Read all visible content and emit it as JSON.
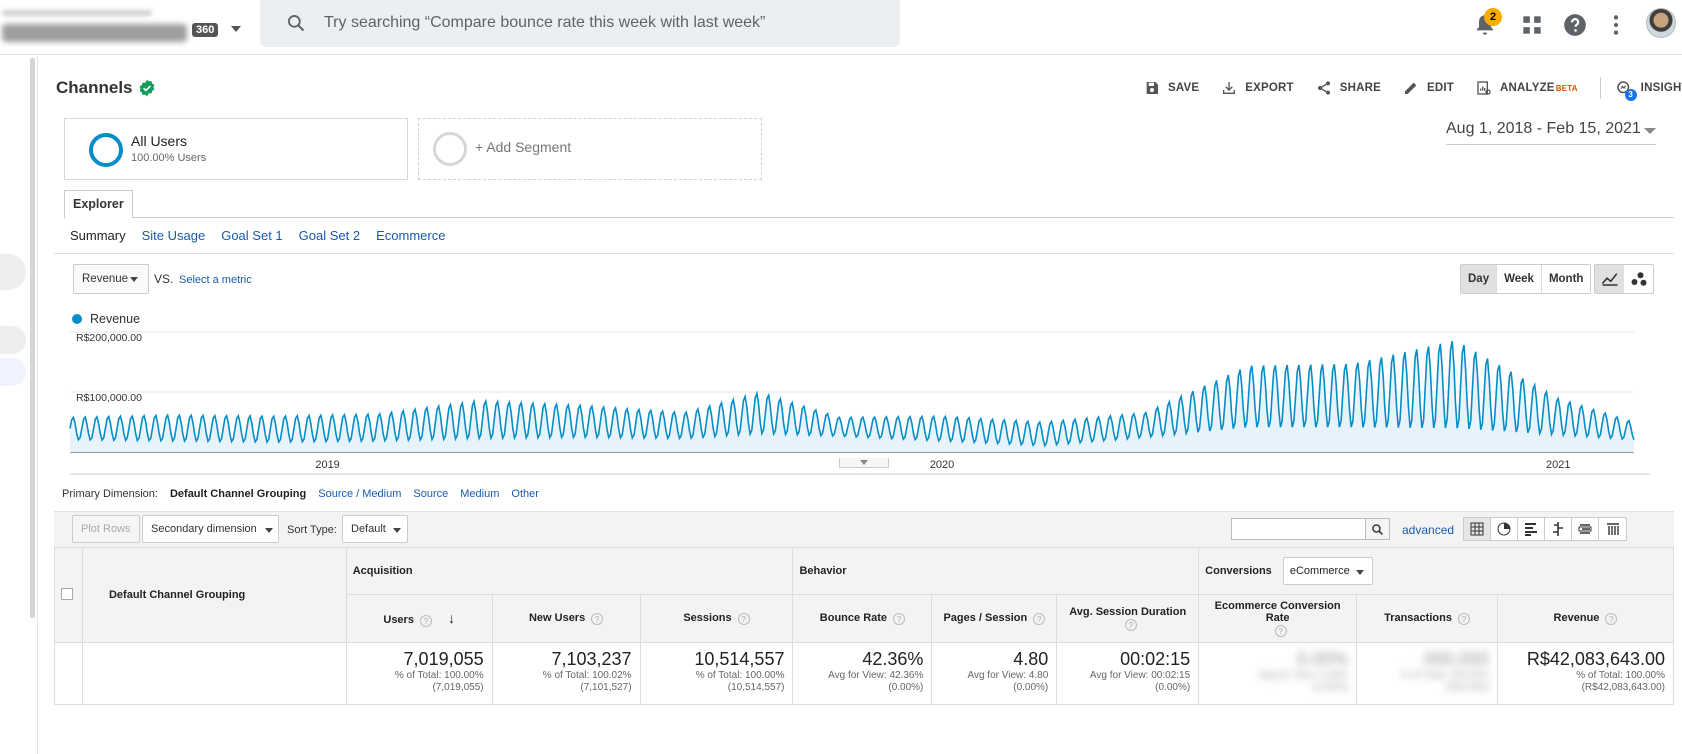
{
  "topbar": {
    "account_badge": "360",
    "search_placeholder": "Try searching “Compare bounce rate this week with last week”",
    "notification_count": "2"
  },
  "report": {
    "title": "Channels",
    "actions": {
      "save": "SAVE",
      "export": "EXPORT",
      "share": "SHARE",
      "edit": "EDIT",
      "analyze": "ANALYZE",
      "analyze_tag": "BETA",
      "insights": "INSIGHTS",
      "insights_count": "3"
    }
  },
  "segments": {
    "primary": {
      "name": "All Users",
      "sub": "100.00% Users"
    },
    "add": "+ Add Segment"
  },
  "date_range": "Aug 1, 2018 - Feb 15, 2021",
  "tabs": {
    "explorer": "Explorer"
  },
  "subtabs": [
    "Summary",
    "Site Usage",
    "Goal Set 1",
    "Goal Set 2",
    "Ecommerce"
  ],
  "chart_controls": {
    "metric": "Revenue",
    "vs": "VS.",
    "select_metric": "Select a metric",
    "granularity": [
      "Day",
      "Week",
      "Month"
    ],
    "granularity_selected": "Day"
  },
  "chart_data": {
    "type": "line",
    "series": [
      {
        "name": "Revenue",
        "color": "#058dc7"
      }
    ],
    "y_ticks": [
      "R$200,000.00",
      "R$100,000.00"
    ],
    "x_ticks": [
      "2019",
      "2020",
      "2021"
    ],
    "x_range": [
      "2018-08-01",
      "2021-02-15"
    ],
    "ylim": [
      0,
      200000
    ],
    "weekly_points": [
      {
        "date": "2018-08-01",
        "low": 20000,
        "high": 58000
      },
      {
        "date": "2018-10-01",
        "low": 18000,
        "high": 62000
      },
      {
        "date": "2018-12-01",
        "low": 16000,
        "high": 60000
      },
      {
        "date": "2019-02-01",
        "low": 18000,
        "high": 64000
      },
      {
        "date": "2019-04-01",
        "low": 22000,
        "high": 86000
      },
      {
        "date": "2019-06-01",
        "low": 24000,
        "high": 78000
      },
      {
        "date": "2019-08-01",
        "low": 22000,
        "high": 66000
      },
      {
        "date": "2019-09-15",
        "low": 30000,
        "high": 100000
      },
      {
        "date": "2019-11-01",
        "low": 26000,
        "high": 58000
      },
      {
        "date": "2020-01-01",
        "low": 18000,
        "high": 60000
      },
      {
        "date": "2020-03-01",
        "low": 10000,
        "high": 50000
      },
      {
        "date": "2020-05-01",
        "low": 24000,
        "high": 66000
      },
      {
        "date": "2020-07-01",
        "low": 40000,
        "high": 145000
      },
      {
        "date": "2020-09-01",
        "low": 40000,
        "high": 148000
      },
      {
        "date": "2020-11-01",
        "low": 38000,
        "high": 188000
      },
      {
        "date": "2021-01-01",
        "low": 28000,
        "high": 90000
      },
      {
        "date": "2021-02-15",
        "low": 20000,
        "high": 50000
      }
    ]
  },
  "primary_dimension": {
    "label": "Primary Dimension:",
    "options": [
      "Default Channel Grouping",
      "Source / Medium",
      "Source",
      "Medium",
      "Other"
    ],
    "selected": "Default Channel Grouping"
  },
  "table_toolbar": {
    "plot_rows": "Plot Rows",
    "secondary_dimension": "Secondary dimension",
    "sort_type_label": "Sort Type:",
    "sort_type_value": "Default",
    "advanced": "advanced"
  },
  "table": {
    "dimension_header": "Default Channel Grouping",
    "groups": {
      "acquisition": "Acquisition",
      "behavior": "Behavior",
      "conversions": "Conversions",
      "conversions_select": "eCommerce"
    },
    "columns": [
      "Users",
      "New Users",
      "Sessions",
      "Bounce Rate",
      "Pages / Session",
      "Avg. Session Duration",
      "Ecommerce Conversion Rate",
      "Transactions",
      "Revenue"
    ],
    "totals": [
      {
        "value": "7,019,055",
        "line1": "% of Total: 100.00%",
        "line2": "(7,019,055)"
      },
      {
        "value": "7,103,237",
        "line1": "% of Total: 100.02%",
        "line2": "(7,101,527)"
      },
      {
        "value": "10,514,557",
        "line1": "% of Total: 100.00%",
        "line2": "(10,514,557)"
      },
      {
        "value": "42.36%",
        "line1": "Avg for View: 42.36%",
        "line2": "(0.00%)"
      },
      {
        "value": "4.80",
        "line1": "Avg for View: 4.80",
        "line2": "(0.00%)"
      },
      {
        "value": "00:02:15",
        "line1": "Avg for View: 00:02:15",
        "line2": "(0.00%)"
      },
      {
        "value": "0.00%",
        "line1": "Avg for View: 0.00%",
        "line2": "(0.00%)"
      },
      {
        "value": "000,000",
        "line1": "% of Total: 100.00%",
        "line2": "(000,000)"
      },
      {
        "value": "R$42,083,643.00",
        "line1": "% of Total: 100.00%",
        "line2": "(R$42,083,643.00)"
      }
    ]
  }
}
